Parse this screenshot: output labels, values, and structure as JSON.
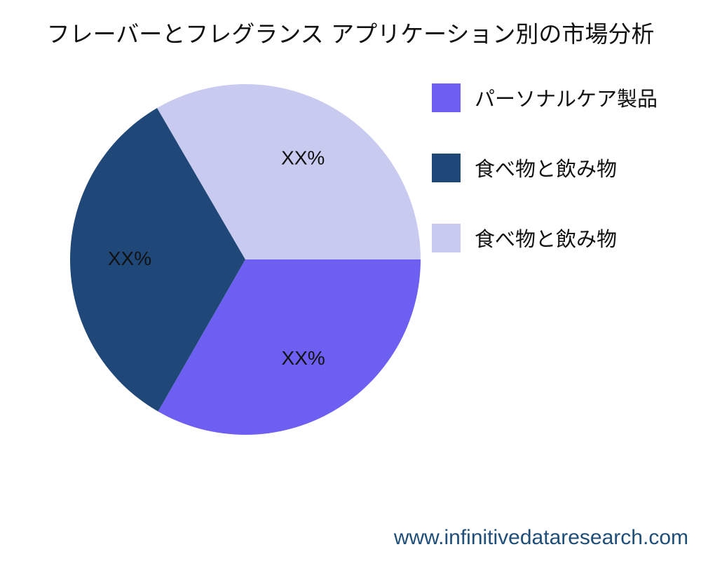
{
  "chart_data": {
    "type": "pie",
    "title": "フレーバーとフレグランス アプリケーション別の市場分析",
    "slices": [
      {
        "name": "パーソナルケア製品",
        "value": 33.3,
        "label": "XX%",
        "color": "#6c5ff2"
      },
      {
        "name": "食べ物と飲み物",
        "value": 33.3,
        "label": "XX%",
        "color": "#1f4878"
      },
      {
        "name": "食べ物と飲み物",
        "value": 33.4,
        "label": "XX%",
        "color": "#c8caf0"
      }
    ],
    "legend_position": "right"
  },
  "watermark": "www.infinitivedataresearch.com"
}
